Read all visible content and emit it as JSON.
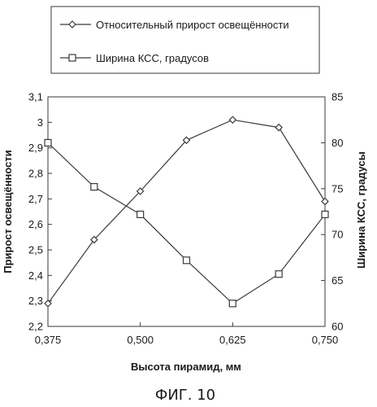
{
  "chart_data": {
    "type": "line",
    "caption": "ФИГ. 10",
    "xlabel": "Высота пирамид, мм",
    "ylabel_left": "Прирост освещённости",
    "ylabel_right": "Ширина КСС, градусы",
    "x_ticks": [
      "0,375",
      "0,500",
      "0,625",
      "0,750"
    ],
    "xlim": [
      0.375,
      0.75
    ],
    "y_left_ticks": [
      "2,2",
      "2,3",
      "2,4",
      "2,5",
      "2,6",
      "2,7",
      "2,8",
      "2,9",
      "3",
      "3,1"
    ],
    "ylim_left": [
      2.2,
      3.1
    ],
    "y_right_ticks": [
      "60",
      "65",
      "70",
      "75",
      "80",
      "85"
    ],
    "ylim_right": [
      60,
      85
    ],
    "grid": false,
    "legend_position": "top",
    "series": [
      {
        "name": "Относительный прирост освещённости",
        "marker": "diamond",
        "axis": "left",
        "x": [
          0.375,
          0.4375,
          0.5,
          0.5625,
          0.625,
          0.6875,
          0.75
        ],
        "values": [
          2.29,
          2.54,
          2.73,
          2.93,
          3.01,
          2.98,
          2.69
        ]
      },
      {
        "name": "Ширина КСС, градусов",
        "marker": "square",
        "axis": "right",
        "x": [
          0.375,
          0.4375,
          0.5,
          0.5625,
          0.625,
          0.6875,
          0.75
        ],
        "values": [
          80,
          75.2,
          72.2,
          67.2,
          62.5,
          65.7,
          72.2
        ]
      }
    ]
  }
}
